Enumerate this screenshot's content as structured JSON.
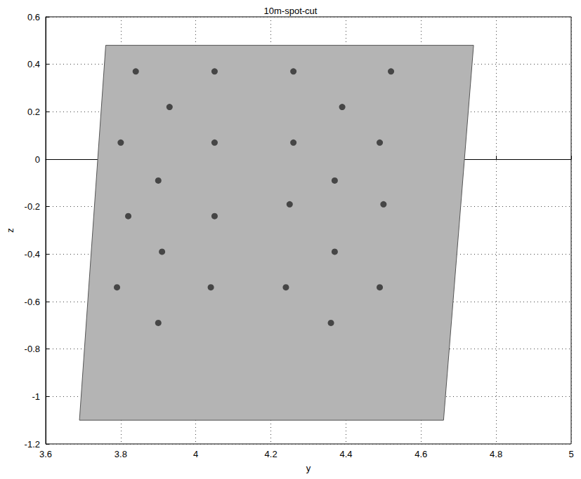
{
  "chart_data": {
    "type": "scatter",
    "title": "10m-spot-cut",
    "x_label": "y",
    "y_label": "z",
    "xlim": [
      3.6,
      5
    ],
    "xticks": [
      3.6,
      3.8,
      4,
      4.2,
      4.4,
      4.6,
      4.8,
      5
    ],
    "ylim": [
      -1.2,
      0.6
    ],
    "yticks": [
      -1.2,
      -1,
      -0.8,
      -0.6,
      -0.4,
      -0.2,
      0,
      0.2,
      0.4,
      0.6
    ],
    "grid": true,
    "series": [
      {
        "type": "polygon",
        "color": "#b4b4b4",
        "x": [
          3.76,
          4.74,
          4.66,
          3.69
        ],
        "y": [
          0.48,
          0.48,
          -1.1,
          -1.1
        ]
      },
      {
        "type": "scatter",
        "color": "#2a2a2a",
        "marker": "circle",
        "x": [
          3.84,
          4.05,
          4.26,
          4.52,
          3.93,
          4.39,
          3.8,
          4.05,
          4.26,
          4.49,
          3.9,
          4.37,
          4.25,
          4.5,
          3.82,
          4.05,
          3.91,
          4.37,
          3.79,
          4.04,
          4.24,
          4.49,
          3.9,
          4.36
        ],
        "y": [
          0.37,
          0.37,
          0.37,
          0.37,
          0.22,
          0.22,
          0.07,
          0.07,
          0.07,
          0.07,
          -0.09,
          -0.09,
          -0.19,
          -0.19,
          -0.24,
          -0.24,
          -0.39,
          -0.39,
          -0.54,
          -0.54,
          -0.54,
          -0.54,
          -0.69,
          -0.69
        ]
      }
    ]
  }
}
